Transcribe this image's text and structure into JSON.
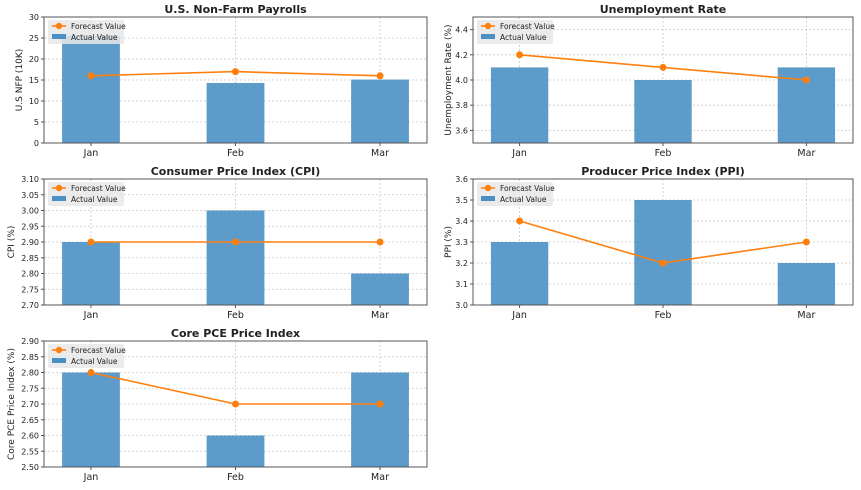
{
  "colors": {
    "bar": "#4a90c4",
    "line": "#ff7f0e",
    "grid": "#c8c8c8",
    "legend_bg": "#e8e8e8"
  },
  "chart_data": [
    {
      "type": "bar+line",
      "title": "U.S. Non-Farm Payrolls",
      "ylabel": "U.S NFP (10K)",
      "categories": [
        "Jan",
        "Feb",
        "Mar"
      ],
      "ylim": [
        0,
        30
      ],
      "yticks": [
        "0",
        "5",
        "10",
        "15",
        "20",
        "25",
        "30"
      ],
      "ytick_values": [
        0,
        5,
        10,
        15,
        20,
        25,
        30
      ],
      "series": [
        {
          "name": "Actual Value",
          "kind": "bar",
          "values": [
            25.6,
            14.3,
            15.1
          ]
        },
        {
          "name": "Forecast Value",
          "kind": "line",
          "values": [
            16,
            17,
            16
          ]
        }
      ],
      "legend": "top-left",
      "grid": true
    },
    {
      "type": "bar+line",
      "title": "Unemployment Rate",
      "ylabel": "Unemployment Rate (%)",
      "categories": [
        "Jan",
        "Feb",
        "Mar"
      ],
      "ylim": [
        3.5,
        4.5
      ],
      "yticks": [
        "3.6",
        "3.8",
        "4.0",
        "4.2",
        "4.4"
      ],
      "ytick_values": [
        3.6,
        3.8,
        4.0,
        4.2,
        4.4
      ],
      "series": [
        {
          "name": "Actual Value",
          "kind": "bar",
          "values": [
            4.1,
            4.0,
            4.1
          ]
        },
        {
          "name": "Forecast Value",
          "kind": "line",
          "values": [
            4.2,
            4.1,
            4.0
          ]
        }
      ],
      "legend": "top-left",
      "grid": true
    },
    {
      "type": "bar+line",
      "title": "Consumer Price Index (CPI)",
      "ylabel": "CPI (%)",
      "categories": [
        "Jan",
        "Feb",
        "Mar"
      ],
      "ylim": [
        2.7,
        3.1
      ],
      "yticks": [
        "2.70",
        "2.75",
        "2.80",
        "2.85",
        "2.90",
        "2.95",
        "3.00",
        "3.05",
        "3.10"
      ],
      "ytick_values": [
        2.7,
        2.75,
        2.8,
        2.85,
        2.9,
        2.95,
        3.0,
        3.05,
        3.1
      ],
      "series": [
        {
          "name": "Actual Value",
          "kind": "bar",
          "values": [
            2.9,
            3.0,
            2.8
          ]
        },
        {
          "name": "Forecast Value",
          "kind": "line",
          "values": [
            2.9,
            2.9,
            2.9
          ]
        }
      ],
      "legend": "top-left",
      "grid": true
    },
    {
      "type": "bar+line",
      "title": "Producer Price Index (PPI)",
      "ylabel": "PPI (%)",
      "categories": [
        "Jan",
        "Feb",
        "Mar"
      ],
      "ylim": [
        3.0,
        3.6
      ],
      "yticks": [
        "3.0",
        "3.1",
        "3.2",
        "3.3",
        "3.4",
        "3.5",
        "3.6"
      ],
      "ytick_values": [
        3.0,
        3.1,
        3.2,
        3.3,
        3.4,
        3.5,
        3.6
      ],
      "series": [
        {
          "name": "Actual Value",
          "kind": "bar",
          "values": [
            3.3,
            3.5,
            3.2
          ]
        },
        {
          "name": "Forecast Value",
          "kind": "line",
          "values": [
            3.4,
            3.2,
            3.3
          ]
        }
      ],
      "legend": "top-left",
      "grid": true
    },
    {
      "type": "bar+line",
      "title": "Core PCE Price Index",
      "ylabel": "Core PCE Price Index (%)",
      "categories": [
        "Jan",
        "Feb",
        "Mar"
      ],
      "ylim": [
        2.5,
        2.9
      ],
      "yticks": [
        "2.50",
        "2.55",
        "2.60",
        "2.65",
        "2.70",
        "2.75",
        "2.80",
        "2.85",
        "2.90"
      ],
      "ytick_values": [
        2.5,
        2.55,
        2.6,
        2.65,
        2.7,
        2.75,
        2.8,
        2.85,
        2.9
      ],
      "series": [
        {
          "name": "Actual Value",
          "kind": "bar",
          "values": [
            2.8,
            2.6,
            2.8
          ]
        },
        {
          "name": "Forecast Value",
          "kind": "line",
          "values": [
            2.8,
            2.7,
            2.7
          ]
        }
      ],
      "legend": "top-left",
      "grid": true
    }
  ]
}
